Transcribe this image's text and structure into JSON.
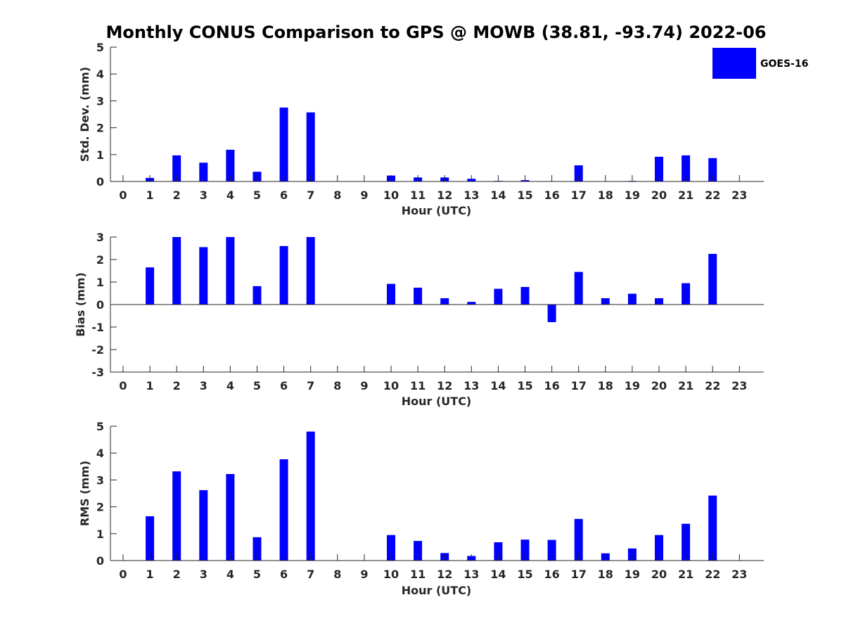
{
  "chart_data": {
    "type": "bar",
    "title": "Monthly CONUS Comparison to GPS @ MOWB (38.81, -93.74) 2022-06",
    "legend": {
      "label": "GOES-16",
      "placement": "top-right"
    },
    "colors": {
      "bar": "#0000ff",
      "axis": "#262626",
      "text": "#262626"
    },
    "categories": [
      "0",
      "1",
      "2",
      "3",
      "4",
      "5",
      "6",
      "7",
      "8",
      "9",
      "10",
      "11",
      "12",
      "13",
      "14",
      "15",
      "16",
      "17",
      "18",
      "19",
      "20",
      "21",
      "22",
      "23"
    ],
    "panels": [
      {
        "name": "stddev",
        "ylabel": "Std. Dev. (mm)",
        "xlabel": "Hour (UTC)",
        "ylim": [
          0,
          5
        ],
        "yticks": [
          0,
          1,
          2,
          3,
          4,
          5
        ],
        "values": [
          null,
          0.13,
          0.97,
          0.7,
          1.18,
          0.36,
          2.75,
          2.57,
          null,
          null,
          0.22,
          0.15,
          0.15,
          0.1,
          0.02,
          0.05,
          null,
          0.6,
          null,
          0.02,
          0.92,
          0.97,
          0.87,
          null
        ]
      },
      {
        "name": "bias",
        "ylabel": "Bias (mm)",
        "xlabel": "Hour (UTC)",
        "ylim": [
          -3,
          3
        ],
        "yticks": [
          -3,
          -2,
          -1,
          0,
          1,
          2,
          3
        ],
        "values": [
          null,
          1.65,
          3.0,
          2.55,
          3.0,
          0.82,
          2.6,
          3.0,
          null,
          null,
          0.92,
          0.75,
          0.28,
          0.12,
          0.7,
          0.78,
          -0.78,
          1.45,
          0.28,
          0.48,
          0.28,
          0.95,
          2.25,
          null
        ]
      },
      {
        "name": "rms",
        "ylabel": "RMS (mm)",
        "xlabel": "Hour (UTC)",
        "ylim": [
          0,
          5
        ],
        "yticks": [
          0,
          1,
          2,
          3,
          4,
          5
        ],
        "values": [
          null,
          1.65,
          3.32,
          2.62,
          3.22,
          0.87,
          3.77,
          4.8,
          null,
          null,
          0.95,
          0.73,
          0.28,
          0.17,
          0.68,
          0.78,
          0.77,
          1.55,
          0.27,
          0.45,
          0.95,
          1.37,
          2.42,
          null
        ]
      }
    ]
  }
}
